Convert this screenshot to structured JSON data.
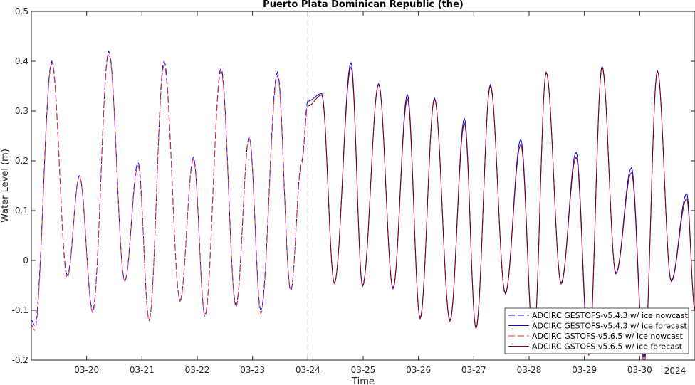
{
  "chart_data": {
    "type": "line",
    "title": "Puerto Plata Dominican Republic (the)",
    "xlabel": "Time",
    "ylabel": "Water Level (m)",
    "year_label": "2024",
    "xlim": [
      0,
      12.0
    ],
    "ylim": [
      -0.2,
      0.5
    ],
    "x_ticks": [
      {
        "x": 1,
        "label": "03-20"
      },
      {
        "x": 2,
        "label": "03-21"
      },
      {
        "x": 3,
        "label": "03-22"
      },
      {
        "x": 4,
        "label": "03-23"
      },
      {
        "x": 5,
        "label": "03-24"
      },
      {
        "x": 6,
        "label": "03-25"
      },
      {
        "x": 7,
        "label": "03-26"
      },
      {
        "x": 8,
        "label": "03-27"
      },
      {
        "x": 9,
        "label": "03-28"
      },
      {
        "x": 10,
        "label": "03-29"
      },
      {
        "x": 11,
        "label": "03-30"
      }
    ],
    "y_ticks": [
      {
        "y": 0.5,
        "label": "0.5"
      },
      {
        "y": 0.4,
        "label": "0.4"
      },
      {
        "y": 0.3,
        "label": "0.3"
      },
      {
        "y": 0.2,
        "label": "0.2"
      },
      {
        "y": 0.1,
        "label": "0.1"
      },
      {
        "y": 0,
        "label": "0"
      },
      {
        "y": -0.1,
        "label": "-0.1"
      },
      {
        "y": -0.2,
        "label": "-0.2"
      }
    ],
    "nowcast_forecast_boundary_x": 5.0,
    "extrema_nowcast": {
      "x": [
        0.0,
        0.06,
        0.37,
        0.65,
        0.87,
        1.11,
        1.4,
        1.69,
        1.93,
        2.13,
        2.4,
        2.69,
        2.93,
        3.14,
        3.43,
        3.7,
        3.94,
        4.15,
        4.45,
        4.69,
        4.89,
        5.0
      ],
      "blue": [
        -0.12,
        -0.13,
        0.4,
        -0.03,
        0.17,
        -0.1,
        0.42,
        -0.04,
        0.197,
        -0.12,
        0.4,
        -0.08,
        0.207,
        -0.11,
        0.386,
        -0.09,
        0.248,
        -0.1,
        0.378,
        -0.06,
        0.2,
        0.32
      ],
      "red": [
        -0.13,
        -0.14,
        0.395,
        -0.035,
        0.168,
        -0.105,
        0.415,
        -0.042,
        0.19,
        -0.12,
        0.392,
        -0.082,
        0.203,
        -0.113,
        0.38,
        -0.094,
        0.245,
        -0.107,
        0.37,
        -0.058,
        0.195,
        0.31
      ]
    },
    "extrema_forecast": {
      "x": [
        5.0,
        5.25,
        5.48,
        5.78,
        5.99,
        6.28,
        6.54,
        6.8,
        7.03,
        7.29,
        7.57,
        7.83,
        8.04,
        8.3,
        8.57,
        8.85,
        9.08,
        9.31,
        9.58,
        9.85,
        10.08,
        10.32,
        10.57,
        10.85,
        11.08,
        11.32,
        11.57,
        11.85,
        12.0
      ],
      "blue": [
        0.32,
        0.335,
        -0.045,
        0.397,
        -0.05,
        0.355,
        -0.055,
        0.333,
        -0.115,
        0.326,
        -0.12,
        0.285,
        -0.135,
        0.353,
        -0.065,
        0.243,
        -0.165,
        0.378,
        -0.045,
        0.217,
        -0.18,
        0.39,
        -0.025,
        0.186,
        -0.195,
        0.381,
        -0.04,
        0.134,
        -0.1
      ],
      "red": [
        0.31,
        0.332,
        -0.046,
        0.388,
        -0.052,
        0.353,
        -0.057,
        0.324,
        -0.117,
        0.324,
        -0.122,
        0.275,
        -0.137,
        0.35,
        -0.067,
        0.233,
        -0.17,
        0.377,
        -0.047,
        0.207,
        -0.19,
        0.388,
        -0.027,
        0.176,
        -0.205,
        0.38,
        -0.042,
        0.124,
        -0.1
      ]
    },
    "series": [
      {
        "name": "ADCIRC GESTOFS-v5.4.3 w/ ice nowcast",
        "color": "#0000ff",
        "dash": "dashed",
        "segment": "nowcast",
        "key": "blue"
      },
      {
        "name": "ADCIRC GESTOFS-v5.4.3 w/ ice forecast",
        "color": "#0000ff",
        "dash": "solid",
        "segment": "forecast",
        "key": "blue"
      },
      {
        "name": "ADCIRC GSTOFS-v5.6.5 w/ ice nowcast",
        "color": "#e8323c",
        "dash": "dashed",
        "segment": "nowcast",
        "key": "red"
      },
      {
        "name": "ADCIRC GSTOFS-v5.6.5 w/ ice forecast",
        "color": "#8b0000",
        "dash": "solid",
        "segment": "forecast",
        "key": "red"
      }
    ],
    "legend_position": "bottom-right",
    "grid": false
  }
}
